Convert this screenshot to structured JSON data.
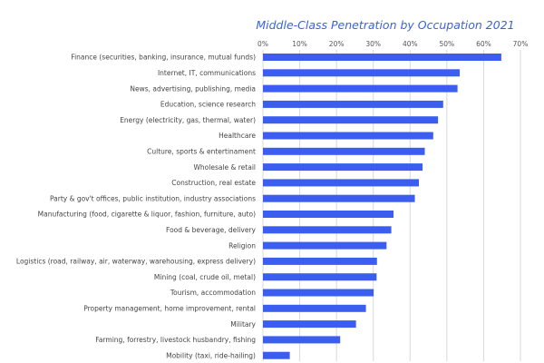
{
  "chart_data": {
    "type": "bar",
    "orientation": "horizontal",
    "title": "Middle-Class Penetration by Occupation 2021",
    "xlabel": "",
    "ylabel": "",
    "xlim": [
      0,
      70
    ],
    "x_ticks": [
      "0%",
      "10%",
      "20%",
      "30%",
      "40%",
      "50%",
      "60%",
      "70%"
    ],
    "x_tick_values": [
      0,
      10,
      20,
      30,
      40,
      50,
      60,
      70
    ],
    "x_axis_position": "top",
    "grid": true,
    "bar_color": "#3b5ef0",
    "categories": [
      "Finance (securities, banking, insurance, mutual funds)",
      "Internet, IT, communications",
      "News, advertising, publishing, media",
      "Education, science research",
      "Energy (electricity, gas, thermal, water)",
      "Healthcare",
      "Culture, sports & entertinament",
      "Wholesale & retail",
      "Construction, real estate",
      "Party & gov't offices, public institution, industry associations",
      "Manufacturing (food, cigarette & liquor, fashion, furniture, auto)",
      "Food & beverage, delivery",
      "Religion",
      "Logistics (road, railway, air, waterway, warehousing, express delivery)",
      "Mining (coal, crude oil, metal)",
      "Tourism, accommodation",
      "Property management, home improvement, rental",
      "Military",
      "Farming, forrestry, livestock husbandry, fishing",
      "Mobility (taxi, ride-hailing)"
    ],
    "values": [
      64.8,
      53.5,
      52.9,
      49.0,
      47.6,
      46.3,
      44.0,
      43.4,
      42.4,
      41.3,
      35.5,
      34.9,
      33.6,
      31.0,
      30.9,
      30.1,
      28.0,
      25.3,
      21.0,
      7.3
    ]
  }
}
